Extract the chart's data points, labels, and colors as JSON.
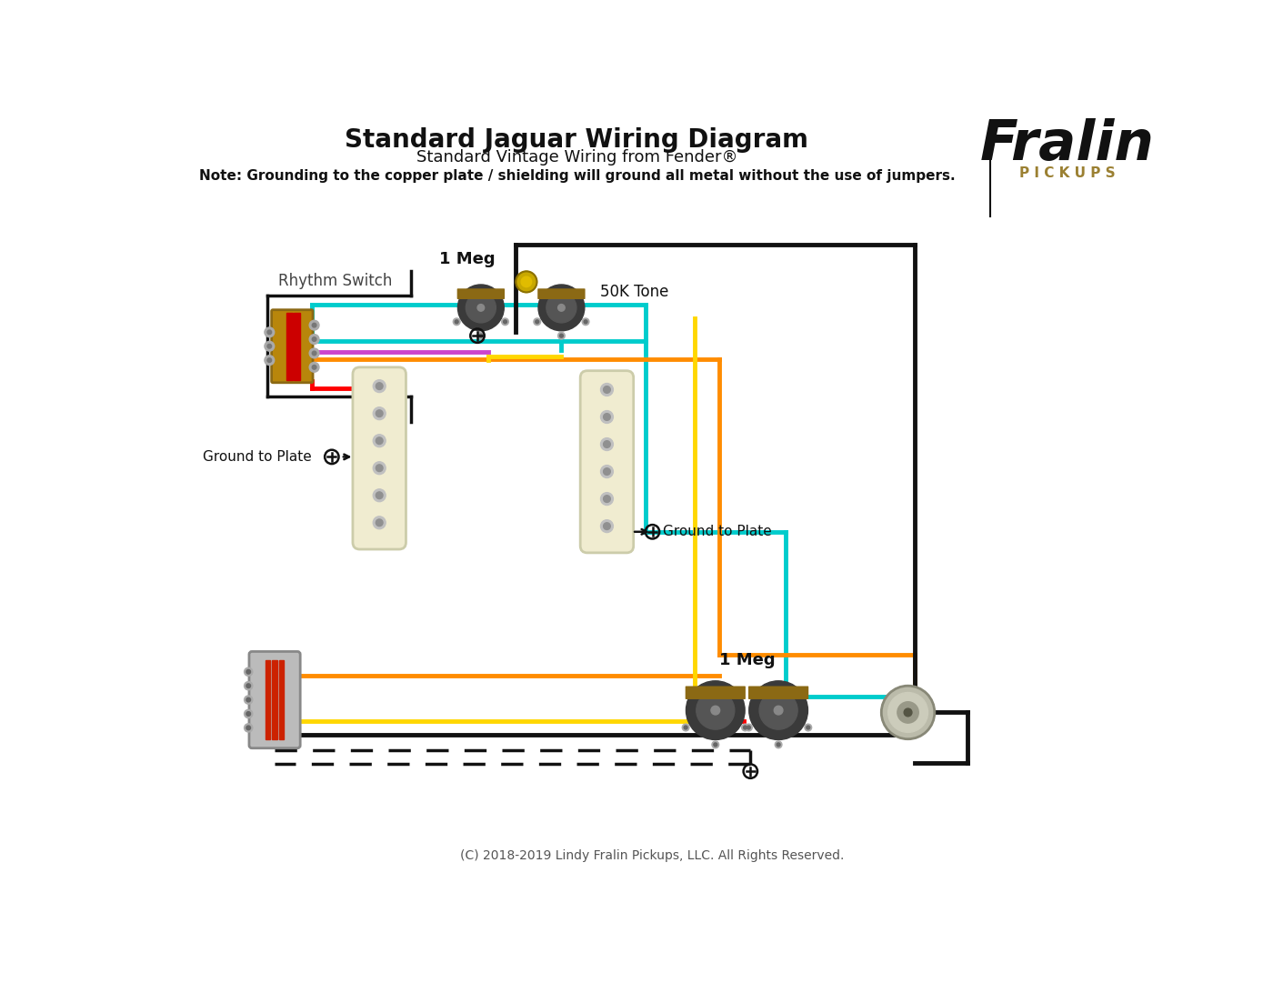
{
  "title": "Standard Jaguar Wiring Diagram",
  "subtitle": "Standard Vintage Wiring from Fender®",
  "note": "Note: Grounding to the copper plate / shielding will ground all metal without the use of jumpers.",
  "copyright": "(C) 2018-2019 Lindy Fralin Pickups, LLC. All Rights Reserved.",
  "bg_color": "#ffffff",
  "colors": {
    "teal": "#00CCCC",
    "orange": "#FF8C00",
    "red": "#FF0000",
    "yellow": "#FFD700",
    "purple": "#CC44CC",
    "black": "#111111",
    "cream": "#F0ECD0",
    "gold": "#C8A800",
    "brown": "#8B6914",
    "silver": "#AAAAAA",
    "dark": "#333333"
  }
}
